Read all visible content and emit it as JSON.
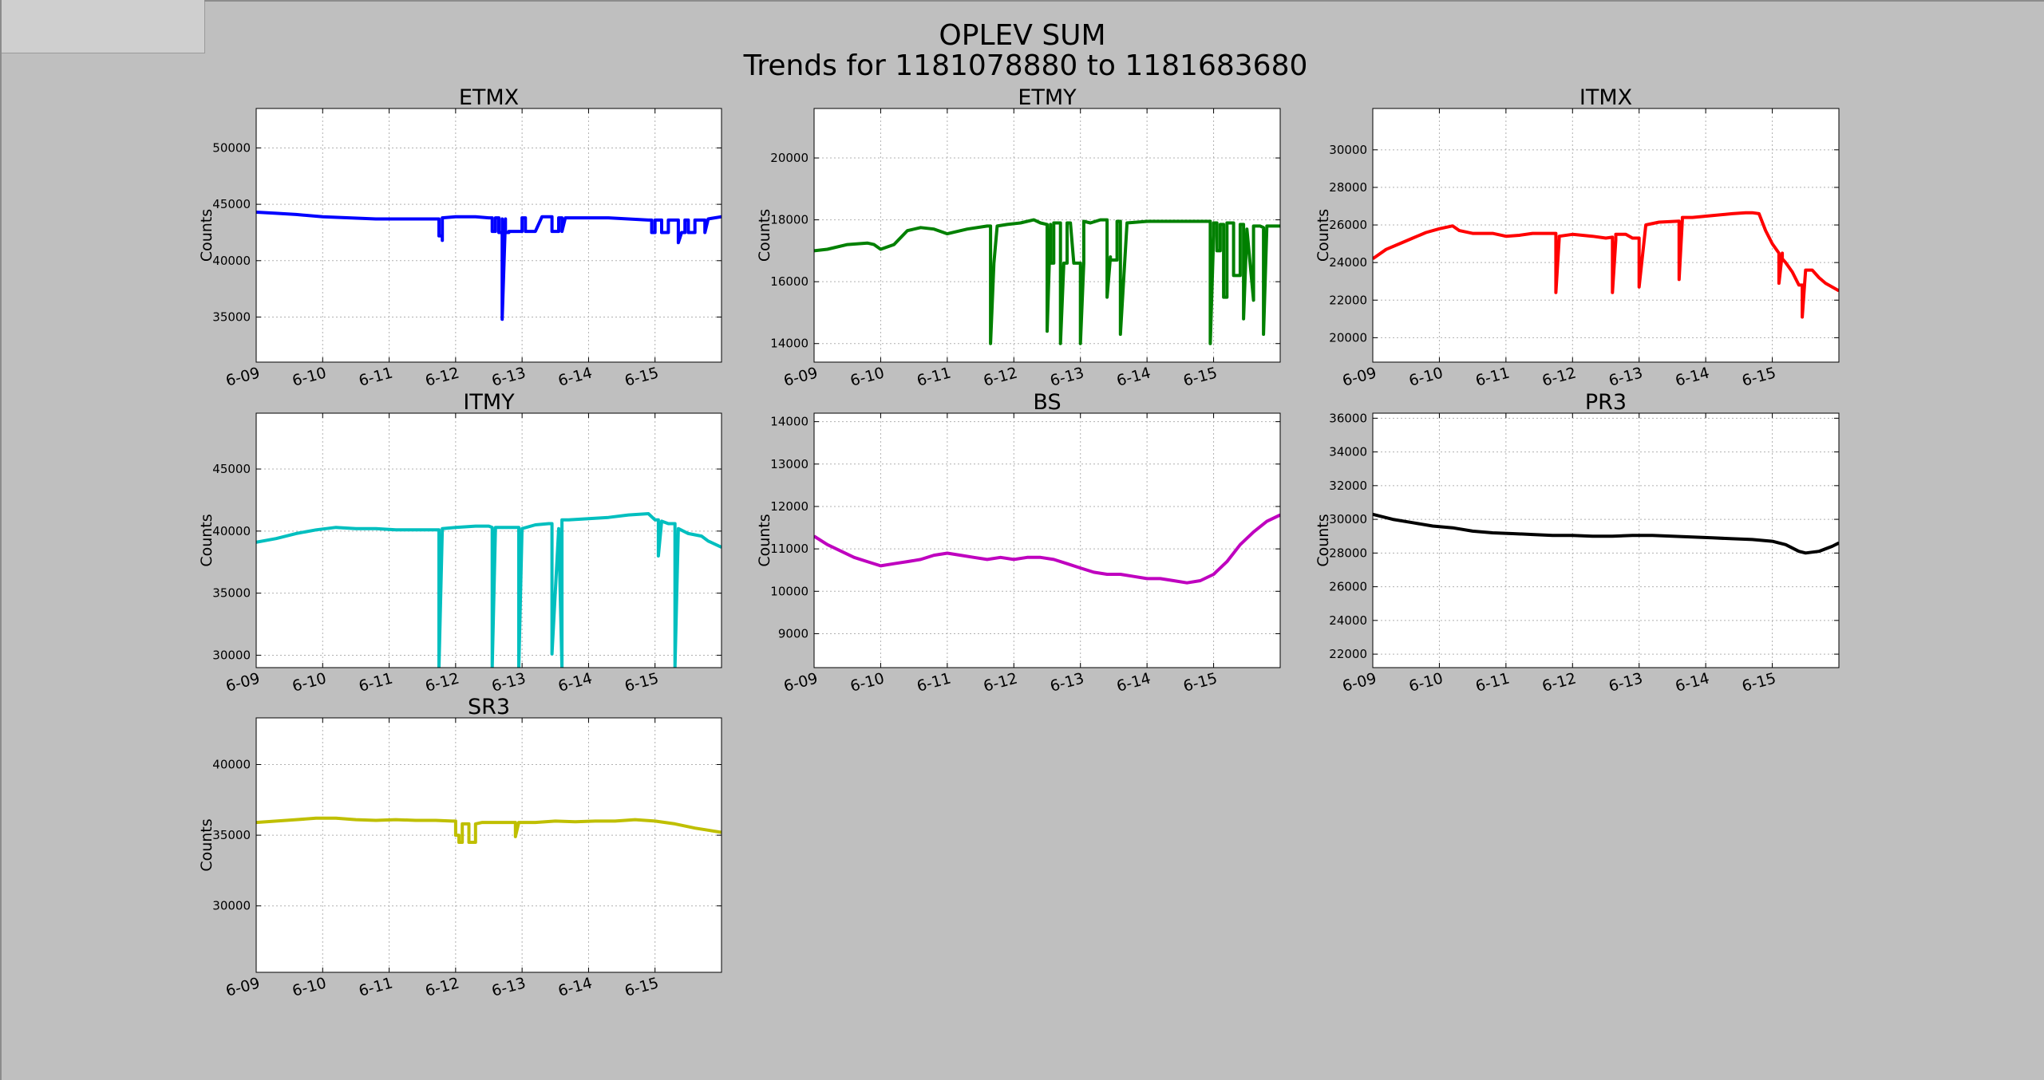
{
  "figure": {
    "title": "OPLEV SUM",
    "subtitle": "Trends for 1181078880 to 1181683680"
  },
  "chart_data": [
    {
      "type": "line",
      "title": "ETMX",
      "ylabel": "Counts",
      "xlabel": "",
      "ylim": [
        31000,
        53500
      ],
      "yticks": [
        35000,
        40000,
        45000,
        50000
      ],
      "xlim": [
        9,
        16
      ],
      "xticks": [
        "6-09",
        "6-10",
        "6-11",
        "6-12",
        "6-13",
        "6-14",
        "6-15"
      ],
      "grid": true,
      "color": "#0000ff",
      "series": [
        {
          "name": "",
          "x": [
            9,
            9.3,
            9.6,
            10,
            10.4,
            10.8,
            11.2,
            11.6,
            11.75,
            11.75,
            11.8,
            11.8,
            11.8,
            12.0,
            12.3,
            12.5,
            12.55,
            12.55,
            12.6,
            12.6,
            12.65,
            12.65,
            12.7,
            12.7,
            12.7,
            12.75,
            12.75,
            12.8,
            12.8,
            13.0,
            13.0,
            13.05,
            13.05,
            13.1,
            13.2,
            13.3,
            13.4,
            13.45,
            13.45,
            13.55,
            13.55,
            13.6,
            13.6,
            13.65,
            13.8,
            14.0,
            14.3,
            14.6,
            14.9,
            14.95,
            14.95,
            15.0,
            15.0,
            15.1,
            15.1,
            15.2,
            15.2,
            15.35,
            15.35,
            15.4,
            15.45,
            15.45,
            15.5,
            15.5,
            15.6,
            15.6,
            15.75,
            15.75,
            15.8,
            16
          ],
          "y": [
            44300,
            44200,
            44100,
            43900,
            43800,
            43700,
            43700,
            43700,
            43700,
            42200,
            42200,
            41800,
            43800,
            43900,
            43900,
            43800,
            43800,
            42600,
            42600,
            43800,
            43800,
            42500,
            42500,
            43700,
            34800,
            43700,
            42500,
            42500,
            42600,
            42600,
            43800,
            43800,
            42600,
            42600,
            42600,
            43900,
            43900,
            43900,
            42600,
            42600,
            43800,
            43800,
            42600,
            43800,
            43800,
            43800,
            43800,
            43700,
            43600,
            43600,
            42500,
            42500,
            43600,
            43600,
            42500,
            42500,
            43600,
            43600,
            41600,
            42500,
            42500,
            43600,
            43600,
            42500,
            42500,
            43600,
            43600,
            42500,
            43700,
            43900
          ]
        }
      ]
    },
    {
      "type": "line",
      "title": "ETMY",
      "ylabel": "Counts",
      "xlabel": "",
      "ylim": [
        13400,
        21600
      ],
      "yticks": [
        14000,
        16000,
        18000,
        20000
      ],
      "xlim": [
        9,
        16
      ],
      "xticks": [
        "6-09",
        "6-10",
        "6-11",
        "6-12",
        "6-13",
        "6-14",
        "6-15"
      ],
      "grid": true,
      "color": "#008000",
      "series": [
        {
          "name": "",
          "x": [
            9,
            9.2,
            9.5,
            9.8,
            9.9,
            10.0,
            10.2,
            10.4,
            10.6,
            10.8,
            11.0,
            11.3,
            11.6,
            11.65,
            11.65,
            11.7,
            11.7,
            11.75,
            11.9,
            12.1,
            12.3,
            12.4,
            12.5,
            12.5,
            12.55,
            12.55,
            12.6,
            12.6,
            12.7,
            12.7,
            12.75,
            12.75,
            12.8,
            12.8,
            12.85,
            12.9,
            12.9,
            13.0,
            13.0,
            13.05,
            13.05,
            13.15,
            13.3,
            13.4,
            13.4,
            13.45,
            13.45,
            13.55,
            13.55,
            13.6,
            13.6,
            13.7,
            14.0,
            14.3,
            14.6,
            14.9,
            14.95,
            14.95,
            15.0,
            15.0,
            15.05,
            15.05,
            15.1,
            15.1,
            15.15,
            15.15,
            15.2,
            15.2,
            15.3,
            15.3,
            15.4,
            15.4,
            15.45,
            15.45,
            15.5,
            15.5,
            15.6,
            15.6,
            15.7,
            15.75,
            15.75,
            15.8,
            16
          ],
          "y": [
            17000,
            17050,
            17200,
            17250,
            17200,
            17050,
            17200,
            17650,
            17750,
            17700,
            17550,
            17700,
            17800,
            17800,
            14000,
            16600,
            16600,
            17800,
            17850,
            17900,
            18000,
            17900,
            17850,
            14400,
            17850,
            16600,
            16600,
            17900,
            17900,
            14000,
            16600,
            16600,
            16600,
            17900,
            17900,
            16600,
            16600,
            16600,
            14000,
            16600,
            17950,
            17900,
            18000,
            18000,
            15500,
            16800,
            16700,
            16700,
            17950,
            17950,
            14300,
            17900,
            17950,
            17950,
            17950,
            17950,
            17950,
            14000,
            17500,
            17900,
            17900,
            17000,
            17000,
            17850,
            17850,
            15500,
            15500,
            17900,
            17900,
            16200,
            16200,
            17850,
            17850,
            14800,
            17700,
            17700,
            15400,
            17800,
            17800,
            17750,
            14300,
            17800,
            17800
          ]
        }
      ]
    },
    {
      "type": "line",
      "title": "ITMX",
      "ylabel": "Counts",
      "xlabel": "",
      "ylim": [
        18700,
        32200
      ],
      "yticks": [
        20000,
        22000,
        24000,
        26000,
        28000,
        30000
      ],
      "xlim": [
        9,
        16
      ],
      "xticks": [
        "6-09",
        "6-10",
        "6-11",
        "6-12",
        "6-13",
        "6-14",
        "6-15"
      ],
      "grid": true,
      "color": "#ff0000",
      "series": [
        {
          "name": "",
          "x": [
            9,
            9.2,
            9.4,
            9.6,
            9.8,
            10.0,
            10.2,
            10.3,
            10.5,
            10.8,
            11.0,
            11.2,
            11.4,
            11.6,
            11.75,
            11.75,
            11.8,
            11.8,
            12.0,
            12.3,
            12.5,
            12.6,
            12.6,
            12.65,
            12.65,
            12.8,
            12.9,
            13.0,
            13.0,
            13.1,
            13.3,
            13.6,
            13.6,
            13.65,
            13.65,
            13.8,
            14.1,
            14.4,
            14.6,
            14.7,
            14.8,
            14.9,
            15.0,
            15.1,
            15.1,
            15.15,
            15.15,
            15.2,
            15.3,
            15.4,
            15.45,
            15.45,
            15.5,
            15.6,
            15.7,
            15.8,
            16
          ],
          "y": [
            24200,
            24700,
            25000,
            25300,
            25600,
            25800,
            25950,
            25700,
            25550,
            25550,
            25400,
            25450,
            25550,
            25550,
            25550,
            22400,
            25300,
            25400,
            25500,
            25400,
            25300,
            25350,
            22400,
            25200,
            25500,
            25500,
            25300,
            25300,
            22700,
            26000,
            26150,
            26200,
            23100,
            26300,
            26400,
            26400,
            26500,
            26600,
            26650,
            26650,
            26600,
            25700,
            25000,
            24500,
            22900,
            24500,
            24200,
            24000,
            23500,
            22800,
            22800,
            21100,
            23600,
            23600,
            23200,
            22900,
            22500
          ]
        }
      ]
    },
    {
      "type": "line",
      "title": "ITMY",
      "ylabel": "Counts",
      "xlabel": "",
      "ylim": [
        29000,
        49500
      ],
      "yticks": [
        30000,
        35000,
        40000,
        45000
      ],
      "xlim": [
        9,
        16
      ],
      "xticks": [
        "6-09",
        "6-10",
        "6-11",
        "6-12",
        "6-13",
        "6-14",
        "6-15"
      ],
      "grid": true,
      "color": "#00bfbf",
      "series": [
        {
          "name": "",
          "x": [
            9,
            9.3,
            9.6,
            9.9,
            10.2,
            10.5,
            10.8,
            11.1,
            11.4,
            11.7,
            11.75,
            11.75,
            11.8,
            11.8,
            12.0,
            12.3,
            12.5,
            12.55,
            12.55,
            12.6,
            12.6,
            12.9,
            12.95,
            12.95,
            13.0,
            13.0,
            13.2,
            13.4,
            13.45,
            13.45,
            13.55,
            13.55,
            13.6,
            13.6,
            13.7,
            14.0,
            14.3,
            14.6,
            14.9,
            15.0,
            15.05,
            15.05,
            15.1,
            15.1,
            15.2,
            15.3,
            15.3,
            15.35,
            15.35,
            15.5,
            15.7,
            15.8,
            16
          ],
          "y": [
            39100,
            39400,
            39800,
            40100,
            40300,
            40200,
            40200,
            40100,
            40100,
            40100,
            40100,
            29000,
            40200,
            40200,
            40300,
            40400,
            40400,
            40300,
            29000,
            40300,
            40300,
            40300,
            40300,
            29000,
            40200,
            40200,
            40500,
            40600,
            40600,
            30100,
            40200,
            40200,
            29000,
            40900,
            40900,
            41000,
            41100,
            41300,
            41400,
            40900,
            40900,
            38000,
            40800,
            40800,
            40600,
            40600,
            29000,
            40200,
            40200,
            39800,
            39600,
            39200,
            38700
          ]
        }
      ]
    },
    {
      "type": "line",
      "title": "BS",
      "ylabel": "Counts",
      "xlabel": "",
      "ylim": [
        8200,
        14200
      ],
      "yticks": [
        9000,
        10000,
        11000,
        12000,
        13000,
        14000
      ],
      "xlim": [
        9,
        16
      ],
      "xticks": [
        "6-09",
        "6-10",
        "6-11",
        "6-12",
        "6-13",
        "6-14",
        "6-15"
      ],
      "grid": true,
      "color": "#bf00bf",
      "series": [
        {
          "name": "",
          "x": [
            9,
            9.2,
            9.4,
            9.6,
            9.8,
            10.0,
            10.2,
            10.4,
            10.6,
            10.8,
            11.0,
            11.2,
            11.4,
            11.6,
            11.8,
            12.0,
            12.2,
            12.4,
            12.6,
            12.8,
            13.0,
            13.2,
            13.4,
            13.6,
            13.8,
            14.0,
            14.2,
            14.4,
            14.6,
            14.8,
            15.0,
            15.2,
            15.4,
            15.6,
            15.8,
            16
          ],
          "y": [
            11300,
            11100,
            10950,
            10800,
            10700,
            10600,
            10650,
            10700,
            10750,
            10850,
            10900,
            10850,
            10800,
            10750,
            10800,
            10750,
            10800,
            10800,
            10750,
            10650,
            10550,
            10450,
            10400,
            10400,
            10350,
            10300,
            10300,
            10250,
            10200,
            10250,
            10400,
            10700,
            11100,
            11400,
            11650,
            11800
          ]
        }
      ]
    },
    {
      "type": "line",
      "title": "PR3",
      "ylabel": "Counts",
      "xlabel": "",
      "ylim": [
        21200,
        36300
      ],
      "yticks": [
        22000,
        24000,
        26000,
        28000,
        30000,
        32000,
        34000,
        36000
      ],
      "xlim": [
        9,
        16
      ],
      "xticks": [
        "6-09",
        "6-10",
        "6-11",
        "6-12",
        "6-13",
        "6-14",
        "6-15"
      ],
      "grid": true,
      "color": "#000000",
      "series": [
        {
          "name": "",
          "x": [
            9,
            9.3,
            9.6,
            9.9,
            10.2,
            10.5,
            10.8,
            11.1,
            11.4,
            11.7,
            12.0,
            12.3,
            12.6,
            12.9,
            13.2,
            13.5,
            13.8,
            14.1,
            14.4,
            14.7,
            15.0,
            15.2,
            15.4,
            15.5,
            15.7,
            15.9,
            16
          ],
          "y": [
            30300,
            30000,
            29800,
            29600,
            29500,
            29300,
            29200,
            29150,
            29100,
            29050,
            29050,
            29000,
            29000,
            29050,
            29050,
            29000,
            28950,
            28900,
            28850,
            28800,
            28700,
            28500,
            28100,
            28000,
            28100,
            28400,
            28600
          ]
        }
      ]
    },
    {
      "type": "line",
      "title": "SR3",
      "ylabel": "Counts",
      "xlabel": "",
      "ylim": [
        25300,
        43300
      ],
      "yticks": [
        30000,
        35000,
        40000
      ],
      "xlim": [
        9,
        16
      ],
      "xticks": [
        "6-09",
        "6-10",
        "6-11",
        "6-12",
        "6-13",
        "6-14",
        "6-15"
      ],
      "grid": true,
      "color": "#bfbf00",
      "series": [
        {
          "name": "",
          "x": [
            9,
            9.3,
            9.6,
            9.9,
            10.2,
            10.5,
            10.8,
            11.1,
            11.4,
            11.7,
            11.95,
            12.0,
            12.0,
            12.05,
            12.05,
            12.1,
            12.1,
            12.2,
            12.2,
            12.3,
            12.3,
            12.4,
            12.6,
            12.9,
            12.9,
            12.95,
            13.2,
            13.5,
            13.8,
            14.1,
            14.4,
            14.7,
            15.0,
            15.3,
            15.6,
            16
          ],
          "y": [
            35900,
            36000,
            36100,
            36200,
            36200,
            36100,
            36050,
            36100,
            36050,
            36050,
            36000,
            36000,
            35000,
            35000,
            34500,
            34500,
            35800,
            35800,
            34500,
            34500,
            35800,
            35900,
            35900,
            35900,
            34900,
            35900,
            35900,
            36000,
            35950,
            36000,
            36000,
            36100,
            36000,
            35800,
            35500,
            35200
          ]
        }
      ]
    }
  ]
}
